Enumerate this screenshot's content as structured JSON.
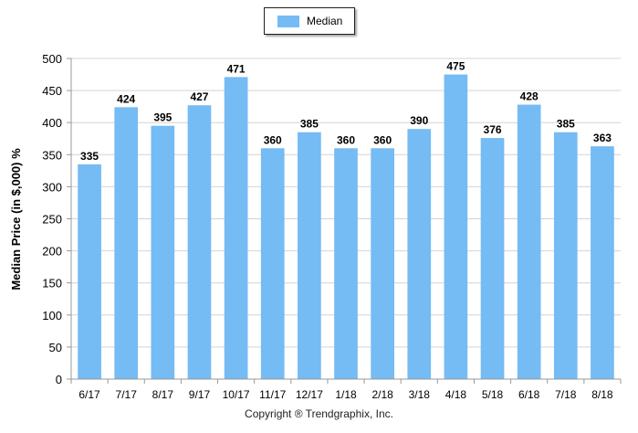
{
  "chart_data": {
    "type": "bar",
    "categories": [
      "6/17",
      "7/17",
      "8/17",
      "9/17",
      "10/17",
      "11/17",
      "12/17",
      "1/18",
      "2/18",
      "3/18",
      "4/18",
      "5/18",
      "6/18",
      "7/18",
      "8/18"
    ],
    "series": [
      {
        "name": "Median",
        "values": [
          335,
          424,
          395,
          427,
          471,
          360,
          385,
          360,
          360,
          390,
          475,
          376,
          428,
          385,
          363
        ]
      }
    ],
    "ylabel": "Median Price (in $,000) %",
    "ylim": [
      0,
      500
    ],
    "yticks": [
      "0",
      "50",
      "100",
      "150",
      "200",
      "250",
      "300",
      "350",
      "400",
      "450",
      "500"
    ],
    "grid": true,
    "legend": "top-center",
    "colors": {
      "bar": "#75bbf4",
      "grid": "#d4d4d4",
      "axis": "#999999"
    }
  },
  "footer": {
    "copyright": "Copyright ® Trendgraphix, Inc."
  }
}
